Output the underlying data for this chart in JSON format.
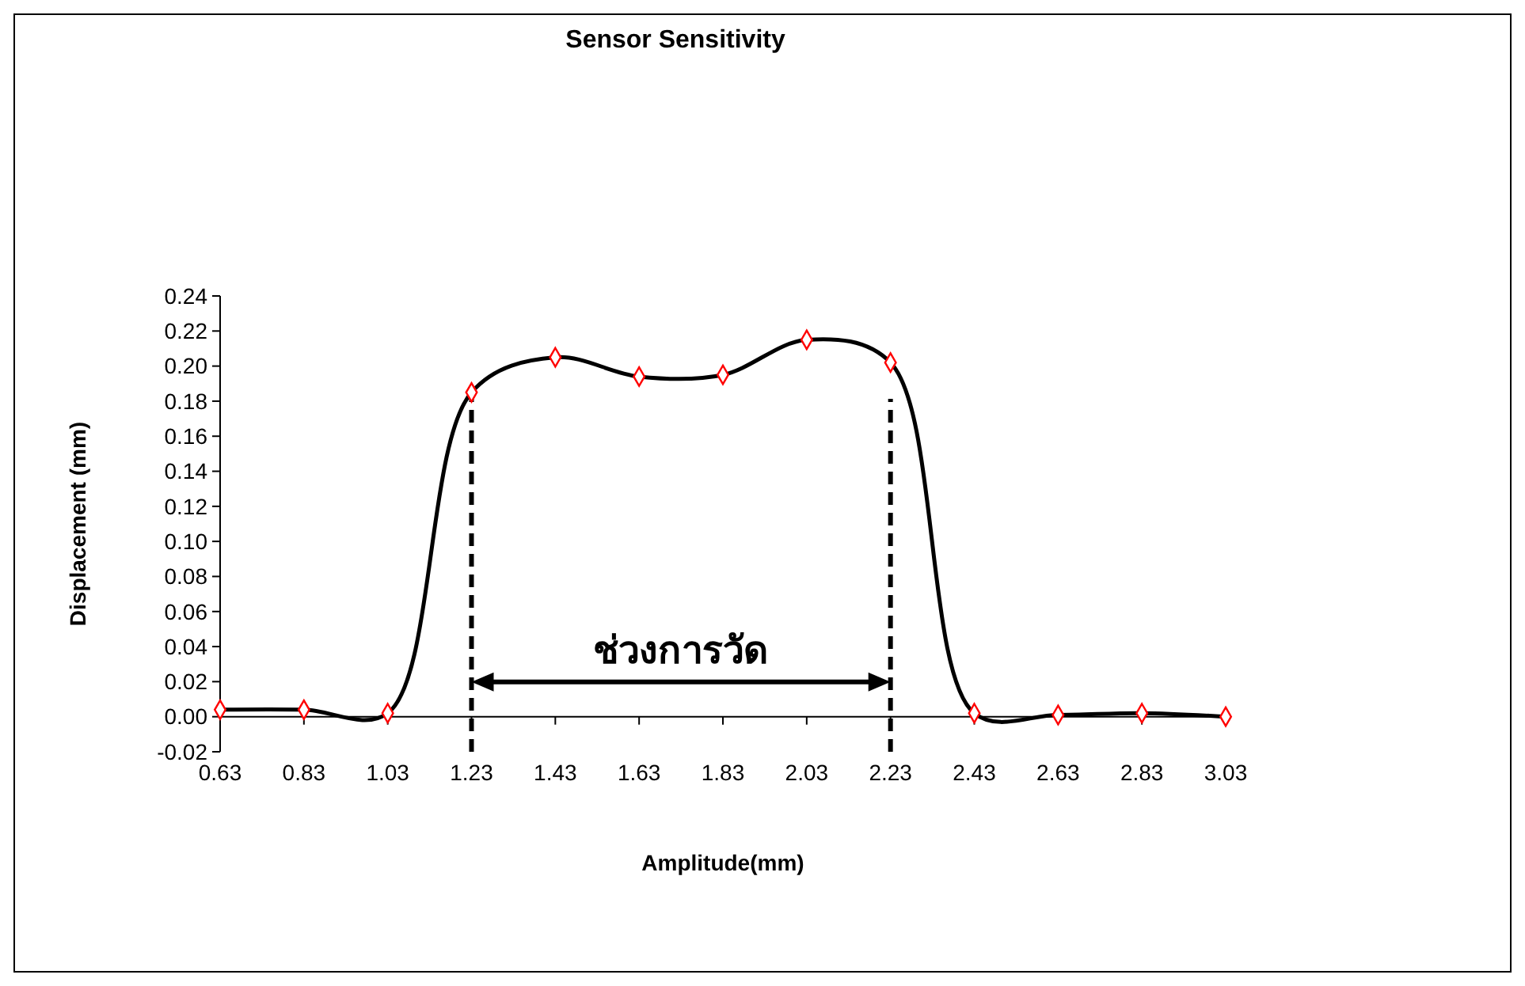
{
  "chart_data": {
    "type": "line",
    "title": "Sensor Sensitivity",
    "xlabel": "Amplitude(mm)",
    "ylabel": "Displacement (mm)",
    "x": [
      0.63,
      0.83,
      1.03,
      1.23,
      1.43,
      1.63,
      1.83,
      2.03,
      2.23,
      2.43,
      2.63,
      2.83,
      3.03
    ],
    "series": [
      {
        "type": "line",
        "color": "#000000",
        "marker": "none",
        "values": [
          0.004,
          0.004,
          0.002,
          0.185,
          0.205,
          0.194,
          0.195,
          0.215,
          0.202,
          0.002,
          0.001,
          0.002,
          0.0
        ]
      },
      {
        "type": "scatter",
        "color": "#ff0000",
        "marker": "diamond",
        "values": [
          0.004,
          0.004,
          0.002,
          0.185,
          0.205,
          0.194,
          0.195,
          0.215,
          0.202,
          0.002,
          0.001,
          0.002,
          0.0
        ]
      }
    ],
    "xlim": [
      0.63,
      3.03
    ],
    "xticks": [
      0.63,
      0.83,
      1.03,
      1.23,
      1.43,
      1.63,
      1.83,
      2.03,
      2.23,
      2.43,
      2.63,
      2.83,
      3.03
    ],
    "ylim": [
      -0.02,
      0.24
    ],
    "yticks": [
      {
        "value": -0.02,
        "label": "-0.02"
      },
      {
        "value": 0,
        "label": "0.00"
      },
      {
        "value": 0.02,
        "label": "0.02"
      },
      {
        "value": 0.04,
        "label": "0.04"
      },
      {
        "value": 0.06,
        "label": "0.06"
      },
      {
        "value": 0.08,
        "label": "0.08"
      },
      {
        "value": 0.1,
        "label": "0.10"
      },
      {
        "value": 0.12,
        "label": "0.12"
      },
      {
        "value": 0.14,
        "label": "0.14"
      },
      {
        "value": 0.16,
        "label": "0.16"
      },
      {
        "value": 0.18,
        "label": "0.18"
      },
      {
        "value": 0.2,
        "label": "0.20"
      },
      {
        "value": 0.22,
        "label": "0.22"
      },
      {
        "value": 0.24,
        "label": "0.24"
      }
    ],
    "ref_lines": [
      {
        "axis": "x",
        "value": 1.23,
        "line_style": "dashed"
      },
      {
        "axis": "x",
        "value": 2.23,
        "line_style": "dashed"
      }
    ],
    "annotations": [
      "ช่วงการวัด"
    ],
    "grid": false
  }
}
